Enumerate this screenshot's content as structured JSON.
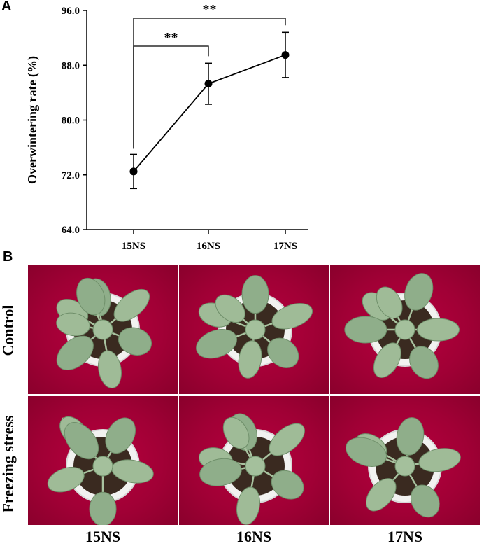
{
  "panel_a_label": "A",
  "panel_b_label": "B",
  "chart_data": {
    "type": "line",
    "categories": [
      "15NS",
      "16NS",
      "17NS"
    ],
    "values": [
      72.5,
      85.3,
      89.5
    ],
    "errors": [
      2.5,
      3.0,
      3.3
    ],
    "ylabel": "Overwintering rate (%)",
    "xlabel": "",
    "ylim": [
      64.0,
      96.0
    ],
    "yticks": [
      "64.0",
      "72.0",
      "80.0",
      "88.0",
      "96.0"
    ],
    "significance": [
      {
        "from": "15NS",
        "to": "16NS",
        "label": "**"
      },
      {
        "from": "15NS",
        "to": "17NS",
        "label": "**"
      }
    ]
  },
  "photos": {
    "row_labels": [
      "Control",
      "Freezing stress"
    ],
    "col_labels": [
      "15NS",
      "16NS",
      "17NS"
    ]
  },
  "colors": {
    "background_cloth": "#a00035",
    "leaf": "#8fae8a",
    "pot": "#f2f2f0",
    "soil": "#3a2a20"
  }
}
